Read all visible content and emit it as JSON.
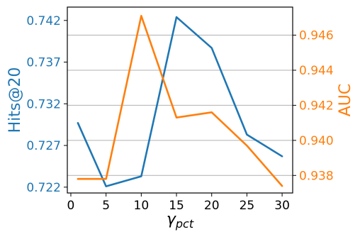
{
  "chart_data": {
    "type": "line",
    "xlabel": "γ",
    "xlabel_sub": "pct",
    "x": [
      1,
      5,
      10,
      15,
      20,
      25,
      30
    ],
    "x_ticks": [
      "0",
      "5",
      "10",
      "15",
      "20",
      "25",
      "30"
    ],
    "xlim": [
      -0.5,
      31.5
    ],
    "series": [
      {
        "name": "Hits@20",
        "axis": "left",
        "color": "#1f77b4",
        "values": [
          0.7297,
          0.7221,
          0.7233,
          0.7424,
          0.7387,
          0.7283,
          0.7257
        ]
      },
      {
        "name": "AUC",
        "axis": "right",
        "color": "#ff7f0e",
        "values": [
          0.9378,
          0.9378,
          0.9471,
          0.9413,
          0.9416,
          0.9397,
          0.9374
        ]
      }
    ],
    "ylabel_left": "Hits@20",
    "ylim_left": [
      0.7213,
      0.7436
    ],
    "yticks_left": [
      "0.722",
      "0.727",
      "0.732",
      "0.737",
      "0.742"
    ],
    "ylabel_right": "AUC",
    "ylim_right": [
      0.937,
      0.9476
    ],
    "yticks_right": [
      "0.938",
      "0.940",
      "0.942",
      "0.944",
      "0.946"
    ],
    "grid": "horizontal-right-axis",
    "legend": "none"
  }
}
